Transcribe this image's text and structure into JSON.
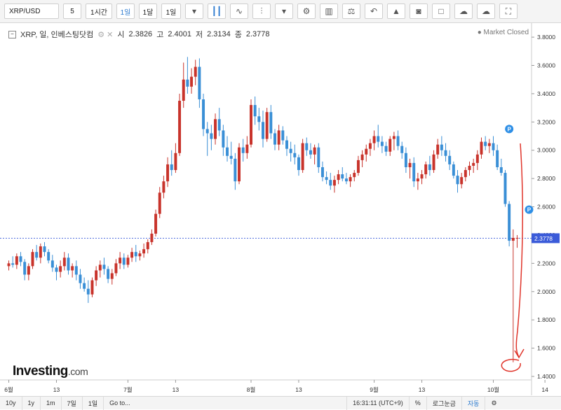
{
  "toolbar": {
    "symbol": "XRP/USD",
    "interval_input": "5",
    "b_1h": "1시간",
    "b_1d": "1일",
    "b_1w": "1달",
    "b_range": "1일"
  },
  "legend": {
    "name": "XRP, 일, 인베스팅닷컴",
    "open_label": "시",
    "open": "2.3826",
    "high_label": "고",
    "high": "2.4001",
    "low_label": "저",
    "low": "2.3134",
    "close_label": "종",
    "close": "2.3778"
  },
  "market_status": "Market Closed",
  "logo": {
    "main": "Investing",
    "suffix": ".com"
  },
  "bottom": {
    "r10y": "10y",
    "r1y": "1y",
    "r1m": "1m",
    "r7d": "7일",
    "r1d": "1일",
    "goto": "Go to...",
    "time": "16:31:11 (UTC+9)",
    "pct": "%",
    "log": "로그눈금",
    "auto": "자동"
  },
  "colors": {
    "up": "#c8332b",
    "down": "#3a8fd6",
    "price_line": "#3b5bd9",
    "annotation": "#e0342a"
  },
  "chart_data": {
    "type": "candlestick",
    "ylim": [
      1.4,
      3.85
    ],
    "yticks": [
      "1.4000",
      "1.6000",
      "1.8000",
      "2.0000",
      "2.2000",
      "2.4000",
      "2.6000",
      "2.8000",
      "3.0000",
      "3.2000",
      "3.4000",
      "3.6000",
      "3.8000"
    ],
    "xticks": [
      {
        "label": "6월",
        "i": 0
      },
      {
        "label": "13",
        "i": 12
      },
      {
        "label": "7월",
        "i": 30
      },
      {
        "label": "13",
        "i": 42
      },
      {
        "label": "8월",
        "i": 61
      },
      {
        "label": "13",
        "i": 73
      },
      {
        "label": "9월",
        "i": 92
      },
      {
        "label": "13",
        "i": 104
      },
      {
        "label": "10월",
        "i": 122
      },
      {
        "label": "14",
        "i": 135
      }
    ],
    "last_price": "2.3778",
    "markers": [
      {
        "i": 126,
        "y": 3.15,
        "text": "P"
      },
      {
        "i": 131,
        "y": 2.58,
        "text": "P"
      }
    ],
    "candles": [
      [
        2.18,
        2.22,
        2.15,
        2.2
      ],
      [
        2.2,
        2.25,
        2.17,
        2.19
      ],
      [
        2.19,
        2.27,
        2.16,
        2.25
      ],
      [
        2.25,
        2.28,
        2.18,
        2.21
      ],
      [
        2.21,
        2.23,
        2.08,
        2.12
      ],
      [
        2.12,
        2.2,
        2.08,
        2.18
      ],
      [
        2.18,
        2.3,
        2.16,
        2.28
      ],
      [
        2.28,
        2.33,
        2.22,
        2.24
      ],
      [
        2.24,
        2.34,
        2.2,
        2.32
      ],
      [
        2.32,
        2.35,
        2.25,
        2.28
      ],
      [
        2.28,
        2.3,
        2.2,
        2.22
      ],
      [
        2.22,
        2.26,
        2.14,
        2.17
      ],
      [
        2.17,
        2.19,
        2.08,
        2.14
      ],
      [
        2.14,
        2.22,
        2.1,
        2.18
      ],
      [
        2.18,
        2.28,
        2.15,
        2.24
      ],
      [
        2.24,
        2.27,
        2.12,
        2.15
      ],
      [
        2.15,
        2.2,
        2.1,
        2.18
      ],
      [
        2.18,
        2.22,
        2.08,
        2.12
      ],
      [
        2.12,
        2.16,
        2.02,
        2.06
      ],
      [
        2.06,
        2.1,
        2.0,
        2.02
      ],
      [
        2.02,
        2.08,
        1.92,
        1.98
      ],
      [
        1.98,
        2.1,
        1.96,
        2.08
      ],
      [
        2.08,
        2.18,
        2.04,
        2.15
      ],
      [
        2.15,
        2.22,
        2.1,
        2.19
      ],
      [
        2.19,
        2.24,
        2.12,
        2.16
      ],
      [
        2.16,
        2.18,
        2.06,
        2.09
      ],
      [
        2.09,
        2.16,
        2.05,
        2.13
      ],
      [
        2.13,
        2.23,
        2.11,
        2.2
      ],
      [
        2.2,
        2.28,
        2.16,
        2.24
      ],
      [
        2.24,
        2.27,
        2.16,
        2.19
      ],
      [
        2.19,
        2.26,
        2.17,
        2.24
      ],
      [
        2.24,
        2.31,
        2.21,
        2.28
      ],
      [
        2.28,
        2.33,
        2.21,
        2.25
      ],
      [
        2.25,
        2.29,
        2.22,
        2.27
      ],
      [
        2.27,
        2.34,
        2.24,
        2.3
      ],
      [
        2.3,
        2.37,
        2.27,
        2.35
      ],
      [
        2.35,
        2.44,
        2.33,
        2.41
      ],
      [
        2.41,
        2.58,
        2.39,
        2.55
      ],
      [
        2.55,
        2.74,
        2.52,
        2.7
      ],
      [
        2.7,
        2.82,
        2.66,
        2.78
      ],
      [
        2.78,
        2.95,
        2.74,
        2.9
      ],
      [
        2.9,
        3.0,
        2.82,
        2.86
      ],
      [
        2.86,
        3.05,
        2.84,
        2.98
      ],
      [
        2.98,
        3.4,
        2.96,
        3.35
      ],
      [
        3.35,
        3.62,
        3.3,
        3.5
      ],
      [
        3.5,
        3.66,
        3.4,
        3.45
      ],
      [
        3.45,
        3.58,
        3.4,
        3.52
      ],
      [
        3.52,
        3.64,
        3.46,
        3.59
      ],
      [
        3.59,
        3.65,
        3.3,
        3.36
      ],
      [
        3.36,
        3.4,
        3.1,
        3.15
      ],
      [
        3.15,
        3.2,
        2.96,
        3.12
      ],
      [
        3.12,
        3.18,
        3.0,
        3.08
      ],
      [
        3.08,
        3.26,
        3.04,
        3.22
      ],
      [
        3.22,
        3.3,
        3.1,
        3.14
      ],
      [
        3.14,
        3.18,
        2.96,
        3.02
      ],
      [
        3.02,
        3.1,
        2.92,
        2.96
      ],
      [
        2.96,
        3.06,
        2.9,
        2.94
      ],
      [
        2.94,
        2.98,
        2.72,
        2.78
      ],
      [
        2.78,
        3.05,
        2.76,
        3.02
      ],
      [
        3.02,
        3.08,
        2.92,
        2.98
      ],
      [
        2.98,
        3.1,
        2.94,
        3.04
      ],
      [
        3.04,
        3.36,
        3.02,
        3.32
      ],
      [
        3.32,
        3.38,
        3.18,
        3.24
      ],
      [
        3.24,
        3.3,
        3.14,
        3.2
      ],
      [
        3.2,
        3.28,
        3.02,
        3.08
      ],
      [
        3.08,
        3.3,
        3.06,
        3.27
      ],
      [
        3.27,
        3.32,
        3.08,
        3.12
      ],
      [
        3.12,
        3.15,
        3.0,
        3.04
      ],
      [
        3.04,
        3.18,
        3.0,
        3.14
      ],
      [
        3.14,
        3.17,
        3.04,
        3.07
      ],
      [
        3.07,
        3.1,
        2.96,
        3.01
      ],
      [
        3.01,
        3.06,
        2.92,
        2.98
      ],
      [
        2.98,
        3.04,
        2.9,
        2.95
      ],
      [
        2.95,
        2.97,
        2.82,
        2.86
      ],
      [
        2.86,
        3.08,
        2.84,
        3.05
      ],
      [
        3.05,
        3.09,
        2.96,
        3.0
      ],
      [
        3.0,
        3.05,
        2.94,
        2.97
      ],
      [
        2.97,
        3.04,
        2.9,
        3.02
      ],
      [
        3.02,
        3.05,
        2.84,
        2.88
      ],
      [
        2.88,
        2.92,
        2.78,
        2.81
      ],
      [
        2.81,
        2.85,
        2.76,
        2.79
      ],
      [
        2.79,
        2.84,
        2.72,
        2.75
      ],
      [
        2.75,
        2.82,
        2.7,
        2.79
      ],
      [
        2.79,
        2.86,
        2.76,
        2.83
      ],
      [
        2.83,
        2.88,
        2.78,
        2.8
      ],
      [
        2.8,
        2.84,
        2.76,
        2.78
      ],
      [
        2.78,
        2.83,
        2.74,
        2.81
      ],
      [
        2.81,
        2.86,
        2.78,
        2.84
      ],
      [
        2.84,
        2.96,
        2.82,
        2.93
      ],
      [
        2.93,
        3.0,
        2.88,
        2.97
      ],
      [
        2.97,
        3.04,
        2.92,
        3.01
      ],
      [
        3.01,
        3.08,
        2.96,
        3.05
      ],
      [
        3.05,
        3.14,
        3.0,
        3.1
      ],
      [
        3.1,
        3.18,
        3.02,
        3.06
      ],
      [
        3.06,
        3.1,
        2.98,
        3.03
      ],
      [
        3.03,
        3.06,
        2.96,
        2.99
      ],
      [
        2.99,
        3.1,
        2.96,
        3.08
      ],
      [
        3.08,
        3.13,
        3.0,
        3.1
      ],
      [
        3.1,
        3.14,
        3.0,
        3.03
      ],
      [
        3.03,
        3.06,
        2.94,
        2.98
      ],
      [
        2.98,
        3.02,
        2.84,
        2.88
      ],
      [
        2.88,
        2.94,
        2.8,
        2.91
      ],
      [
        2.91,
        2.95,
        2.74,
        2.78
      ],
      [
        2.78,
        2.84,
        2.72,
        2.8
      ],
      [
        2.8,
        2.86,
        2.76,
        2.83
      ],
      [
        2.83,
        2.92,
        2.8,
        2.9
      ],
      [
        2.9,
        2.96,
        2.82,
        2.86
      ],
      [
        2.86,
        3.0,
        2.84,
        2.97
      ],
      [
        2.97,
        3.08,
        2.94,
        3.04
      ],
      [
        3.04,
        3.1,
        2.96,
        3.0
      ],
      [
        3.0,
        3.05,
        2.92,
        2.96
      ],
      [
        2.96,
        3.0,
        2.86,
        2.9
      ],
      [
        2.9,
        2.92,
        2.8,
        2.82
      ],
      [
        2.82,
        2.86,
        2.7,
        2.76
      ],
      [
        2.76,
        2.84,
        2.73,
        2.81
      ],
      [
        2.81,
        2.88,
        2.78,
        2.86
      ],
      [
        2.86,
        2.92,
        2.82,
        2.89
      ],
      [
        2.89,
        2.94,
        2.84,
        2.91
      ],
      [
        2.91,
        3.0,
        2.86,
        2.97
      ],
      [
        2.97,
        3.09,
        2.94,
        3.06
      ],
      [
        3.06,
        3.1,
        3.0,
        3.03
      ],
      [
        3.03,
        3.08,
        2.98,
        3.05
      ],
      [
        3.05,
        3.1,
        2.96,
        3.0
      ],
      [
        3.0,
        3.04,
        2.86,
        2.88
      ],
      [
        2.88,
        2.94,
        2.82,
        2.84
      ],
      [
        2.84,
        2.86,
        2.6,
        2.62
      ],
      [
        2.62,
        2.64,
        2.32,
        2.36
      ],
      [
        2.36,
        2.44,
        1.5,
        2.38
      ],
      [
        2.38,
        2.4,
        2.31,
        2.38
      ]
    ]
  }
}
